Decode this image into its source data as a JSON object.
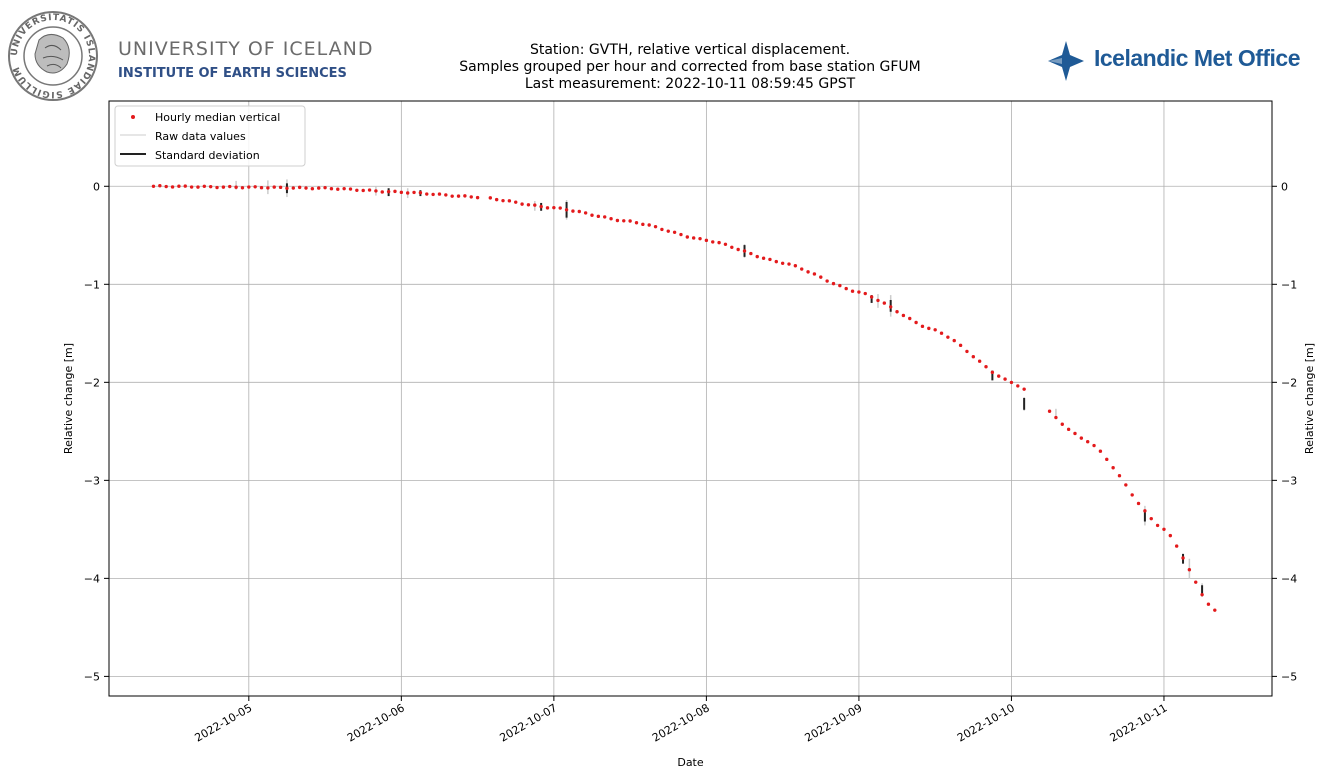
{
  "header": {
    "university_name": "UNIVERSITY OF ICELAND",
    "institute_name": "INSTITUTE OF EARTH SCIENCES",
    "seal_text": "UNIVERSITATIS ISLANDIAE SIGILLUM",
    "met_office_name": "Icelandic Met Office"
  },
  "colors": {
    "median": "#e31a1c",
    "raw": "#cccccc",
    "std": "#222222",
    "grid": "#b0b0b0",
    "imo_blue": "#1f5a96"
  },
  "chart_data": {
    "type": "scatter",
    "title": [
      "Station: GVTH, relative vertical displacement.",
      "Samples grouped per hour and corrected from base station GFUM",
      "Last measurement: 2022-10-11 08:59:45 GPST"
    ],
    "xlabel": "Date",
    "ylabel": "Relative change [m]",
    "ylabel_right": "Relative change [m]",
    "xlim": [
      "2022-10-04 02:00",
      "2022-10-11 17:00"
    ],
    "ylim": [
      -5.2,
      0.87
    ],
    "x_ticks": [
      "2022-10-05",
      "2022-10-06",
      "2022-10-07",
      "2022-10-08",
      "2022-10-09",
      "2022-10-10",
      "2022-10-11"
    ],
    "y_ticks": [
      0,
      -1,
      -2,
      -3,
      -4,
      -5
    ],
    "y_tick_labels": [
      "0",
      "−1",
      "−2",
      "−3",
      "−4",
      "−5"
    ],
    "grid": true,
    "legend_position": "upper-left",
    "legend": [
      "Hourly median vertical",
      "Raw data values",
      "Standard deviation"
    ],
    "median_curve_knots": [
      {
        "x": "2022-10-04 09:00",
        "y": 0.0
      },
      {
        "x": "2022-10-05 00:00",
        "y": -0.01
      },
      {
        "x": "2022-10-05 12:00",
        "y": -0.02
      },
      {
        "x": "2022-10-06 00:00",
        "y": -0.06
      },
      {
        "x": "2022-10-06 12:00",
        "y": -0.11
      },
      {
        "x": "2022-10-07 00:00",
        "y": -0.22
      },
      {
        "x": "2022-10-07 12:00",
        "y": -0.36
      },
      {
        "x": "2022-10-08 00:00",
        "y": -0.55
      },
      {
        "x": "2022-10-08 12:00",
        "y": -0.78
      },
      {
        "x": "2022-10-09 00:00",
        "y": -1.08
      },
      {
        "x": "2022-10-09 12:00",
        "y": -1.47
      },
      {
        "x": "2022-10-10 00:00",
        "y": -2.0
      },
      {
        "x": "2022-10-10 12:00",
        "y": -2.6
      },
      {
        "x": "2022-10-11 00:00",
        "y": -3.5
      },
      {
        "x": "2022-10-11 08:00",
        "y": -4.33
      }
    ],
    "std_bars": [
      {
        "x": "2022-10-05 06:00",
        "y": -0.02,
        "sd": 0.05
      },
      {
        "x": "2022-10-05 22:00",
        "y": -0.06,
        "sd": 0.04
      },
      {
        "x": "2022-10-06 03:00",
        "y": -0.07,
        "sd": 0.03
      },
      {
        "x": "2022-10-06 22:00",
        "y": -0.21,
        "sd": 0.04
      },
      {
        "x": "2022-10-07 02:00",
        "y": -0.24,
        "sd": 0.08
      },
      {
        "x": "2022-10-08 06:00",
        "y": -0.66,
        "sd": 0.06
      },
      {
        "x": "2022-10-09 02:00",
        "y": -1.15,
        "sd": 0.04
      },
      {
        "x": "2022-10-09 05:00",
        "y": -1.22,
        "sd": 0.06
      },
      {
        "x": "2022-10-09 21:00",
        "y": -1.93,
        "sd": 0.05
      },
      {
        "x": "2022-10-10 02:00",
        "y": -2.22,
        "sd": 0.06
      },
      {
        "x": "2022-10-10 21:00",
        "y": -3.36,
        "sd": 0.06
      },
      {
        "x": "2022-10-11 03:00",
        "y": -3.8,
        "sd": 0.05
      },
      {
        "x": "2022-10-11 06:00",
        "y": -4.12,
        "sd": 0.05
      }
    ],
    "raw_ranges": [
      {
        "x": "2022-10-04 22:00",
        "y": 0.01,
        "range": 0.09
      },
      {
        "x": "2022-10-05 03:00",
        "y": -0.01,
        "range": 0.14
      },
      {
        "x": "2022-10-05 06:00",
        "y": -0.02,
        "range": 0.18
      },
      {
        "x": "2022-10-05 20:00",
        "y": -0.05,
        "range": 0.09
      },
      {
        "x": "2022-10-06 01:00",
        "y": -0.07,
        "range": 0.1
      },
      {
        "x": "2022-10-06 21:00",
        "y": -0.2,
        "range": 0.1
      },
      {
        "x": "2022-10-07 02:00",
        "y": -0.24,
        "range": 0.2
      },
      {
        "x": "2022-10-08 06:00",
        "y": -0.66,
        "range": 0.14
      },
      {
        "x": "2022-10-09 03:00",
        "y": -1.17,
        "range": 0.14
      },
      {
        "x": "2022-10-09 05:00",
        "y": -1.22,
        "range": 0.22
      },
      {
        "x": "2022-10-09 21:00",
        "y": -1.93,
        "range": 0.1
      },
      {
        "x": "2022-10-10 02:00",
        "y": -2.22,
        "range": 0.14
      },
      {
        "x": "2022-10-10 07:00",
        "y": -2.32,
        "range": 0.1
      },
      {
        "x": "2022-10-10 21:00",
        "y": -3.36,
        "range": 0.2
      },
      {
        "x": "2022-10-11 04:00",
        "y": -3.9,
        "range": 0.2
      },
      {
        "x": "2022-10-11 06:00",
        "y": -4.12,
        "range": 0.14
      }
    ]
  }
}
